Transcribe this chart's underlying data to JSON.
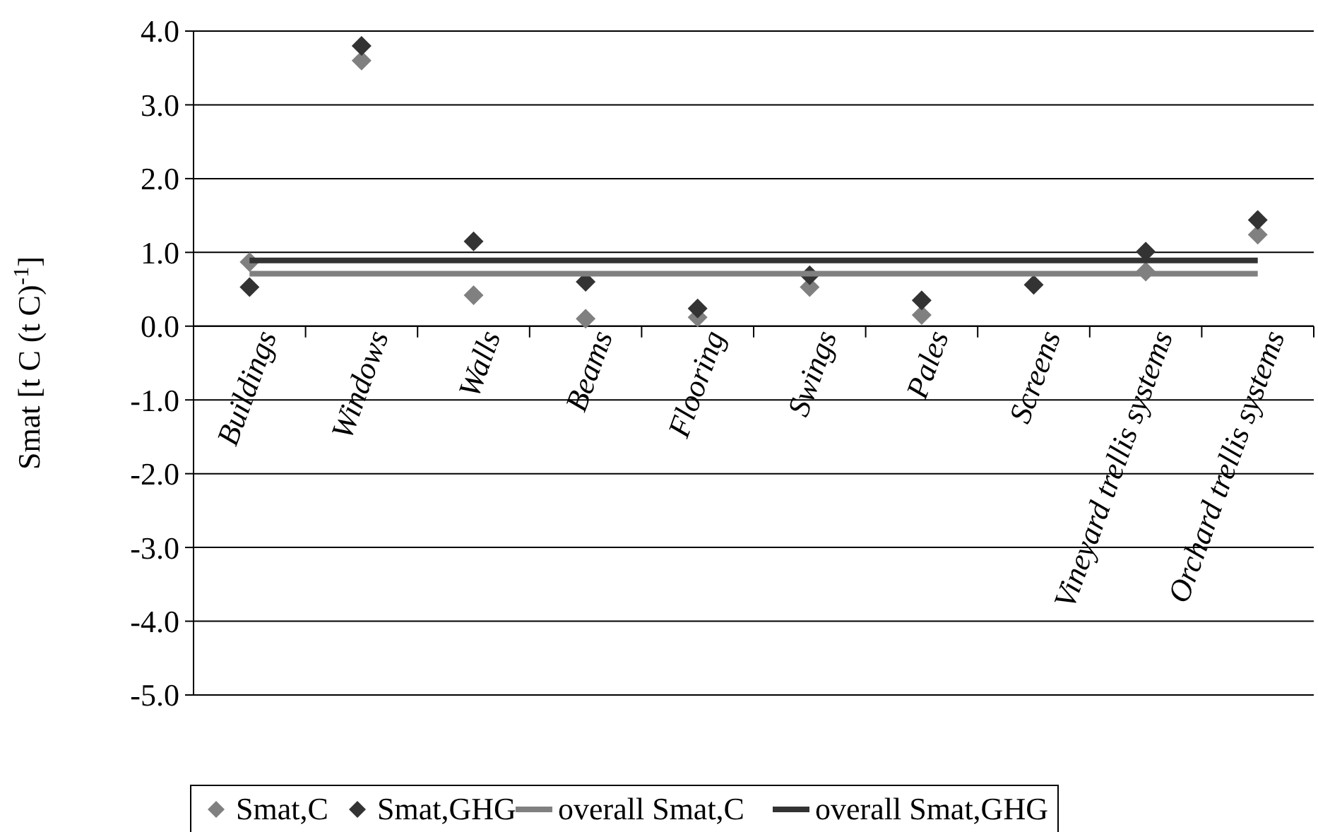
{
  "chart_data": {
    "type": "scatter",
    "ylabel": "Smat [t C (t C)$^{-1}$]",
    "categories": [
      "Buildings",
      "Windows",
      "Walls",
      "Beams",
      "Flooring",
      "Swings",
      "Pales",
      "Screens",
      "Vineyard trellis systems",
      "Orchard trellis systems"
    ],
    "series": [
      {
        "name": "Smat,C",
        "color": "#808080",
        "marker": "diamond",
        "values": [
          0.87,
          3.6,
          0.42,
          0.1,
          0.12,
          0.53,
          0.15,
          null,
          0.74,
          1.24
        ]
      },
      {
        "name": "Smat,GHG",
        "color": "#333333",
        "marker": "diamond",
        "values": [
          0.53,
          3.8,
          1.15,
          0.6,
          0.24,
          0.69,
          0.35,
          0.56,
          1.01,
          1.44
        ]
      },
      {
        "name": "overall Smat,C",
        "type": "line",
        "color": "#808080",
        "marker": "none",
        "values": [
          0.71,
          0.71,
          0.71,
          0.71,
          0.71,
          0.71,
          0.71,
          0.71,
          0.71,
          0.71
        ]
      },
      {
        "name": "overall Smat,GHG",
        "type": "line",
        "color": "#333333",
        "marker": "none",
        "values": [
          0.89,
          0.89,
          0.89,
          0.89,
          0.89,
          0.89,
          0.89,
          0.89,
          0.89,
          0.89
        ]
      }
    ],
    "ylim": [
      -5,
      4
    ],
    "yticks": [
      {
        "value": -5,
        "label": "-5.0"
      },
      {
        "value": -4,
        "label": "-4.0"
      },
      {
        "value": -3,
        "label": "-3.0"
      },
      {
        "value": -2,
        "label": "-2.0"
      },
      {
        "value": -1,
        "label": "-1.0"
      },
      {
        "value": 0,
        "label": "0.0"
      },
      {
        "value": 1,
        "label": "1.0"
      },
      {
        "value": 2,
        "label": "2.0"
      },
      {
        "value": 3,
        "label": "3.0"
      },
      {
        "value": 4,
        "label": "4.0"
      }
    ],
    "grid": "y",
    "legend": "bottom"
  }
}
